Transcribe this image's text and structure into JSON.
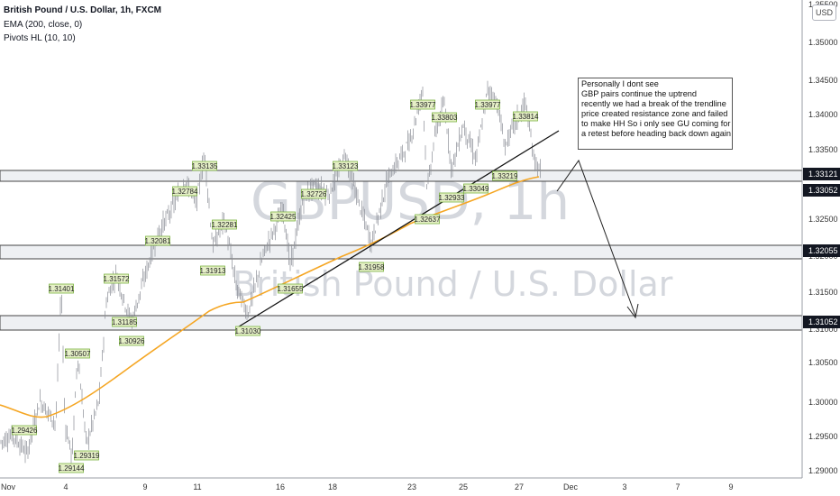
{
  "legend": {
    "symbol_line": "British Pound / U.S. Dollar, 1h, FXCM",
    "ema_line": "EMA (200, close, 0)",
    "pivots_line": "Pivots HL (10, 10)"
  },
  "watermark": {
    "ticker": "GBPUSD, 1h",
    "name": "British Pound / U.S. Dollar"
  },
  "currency_button": "USD",
  "annotation": {
    "lines": [
      "Personally I dont see",
      "GBP pairs continue the uptrend",
      "recently we had a break of the trendline",
      "price created resistance zone and failed",
      "to make HH So i only see GU coming for",
      "a retest before heading back down again"
    ]
  },
  "colors": {
    "ema": "#f5a623",
    "candles": "#8a8d96",
    "pivot_tag_bg": "#e6f0c8",
    "pivot_tag_border": "#7cb342",
    "zone_fill": "#eef0f3",
    "price_label_bg": "#131722"
  },
  "chart_data": {
    "type": "candlestick",
    "x_ticks": [
      "Nov",
      "4",
      "9",
      "11",
      "16",
      "18",
      "23",
      "25",
      "27",
      "Dec",
      "3",
      "7",
      "9"
    ],
    "y_ticks": [
      "1.35500",
      "1.35000",
      "1.34500",
      "1.34000",
      "1.33500",
      "1.32500",
      "1.32000",
      "1.31500",
      "1.31000",
      "1.30500",
      "1.30000",
      "1.29500",
      "1.29000"
    ],
    "ylim": [
      1.29,
      1.3555
    ],
    "price_lines": [
      "1.33121",
      "1.33052",
      "1.32055",
      "1.31052"
    ],
    "pivots": [
      {
        "label": "1.29426",
        "x": "Nov 1",
        "y": 1.29426,
        "type": "low"
      },
      {
        "label": "1.31401",
        "x": "Nov 3",
        "y": 1.31401,
        "type": "high"
      },
      {
        "label": "1.29144",
        "x": "Nov 4",
        "y": 1.29144,
        "type": "low"
      },
      {
        "label": "1.30507",
        "x": "Nov 5",
        "y": 1.30507,
        "type": "high"
      },
      {
        "label": "1.29319",
        "x": "Nov 5",
        "y": 1.29319,
        "type": "low"
      },
      {
        "label": "1.31572",
        "x": "Nov 6",
        "y": 1.31572,
        "type": "high"
      },
      {
        "label": "1.31185",
        "x": "Nov 7",
        "y": 1.31185,
        "type": "low"
      },
      {
        "label": "1.30926",
        "x": "Nov 7",
        "y": 1.30926,
        "type": "low"
      },
      {
        "label": "1.32081",
        "x": "Nov 8",
        "y": 1.32081,
        "type": "high"
      },
      {
        "label": "1.32784",
        "x": "Nov 10",
        "y": 1.32784,
        "type": "high"
      },
      {
        "label": "1.33135",
        "x": "Nov 11",
        "y": 1.33135,
        "type": "high"
      },
      {
        "label": "1.32281",
        "x": "Nov 12",
        "y": 1.32281,
        "type": "high"
      },
      {
        "label": "1.31913",
        "x": "Nov 12",
        "y": 1.31913,
        "type": "low"
      },
      {
        "label": "1.31030",
        "x": "Nov 13",
        "y": 1.3103,
        "type": "low"
      },
      {
        "label": "1.32425",
        "x": "Nov 16",
        "y": 1.32425,
        "type": "high"
      },
      {
        "label": "1.31655",
        "x": "Nov 17",
        "y": 1.31655,
        "type": "low"
      },
      {
        "label": "1.32726",
        "x": "Nov 17",
        "y": 1.32726,
        "type": "high"
      },
      {
        "label": "1.33123",
        "x": "Nov 18",
        "y": 1.33123,
        "type": "high"
      },
      {
        "label": "1.31958",
        "x": "Nov 20",
        "y": 1.31958,
        "type": "low"
      },
      {
        "label": "1.33977",
        "x": "Nov 23",
        "y": 1.33977,
        "type": "high"
      },
      {
        "label": "1.32637",
        "x": "Nov 23",
        "y": 1.32637,
        "type": "low"
      },
      {
        "label": "1.33803",
        "x": "Nov 24",
        "y": 1.33803,
        "type": "high"
      },
      {
        "label": "1.32933",
        "x": "Nov 24",
        "y": 1.32933,
        "type": "low"
      },
      {
        "label": "1.33049",
        "x": "Nov 25",
        "y": 1.33049,
        "type": "low"
      },
      {
        "label": "1.33977",
        "x": "Nov 26",
        "y": 1.33977,
        "type": "high"
      },
      {
        "label": "1.33219",
        "x": "Nov 27",
        "y": 1.33219,
        "type": "low"
      },
      {
        "label": "1.33814",
        "x": "Nov 27",
        "y": 1.33814,
        "type": "high"
      }
    ],
    "ema_200": true,
    "zones": [
      "1.33121",
      "1.32055",
      "1.31052"
    ]
  }
}
